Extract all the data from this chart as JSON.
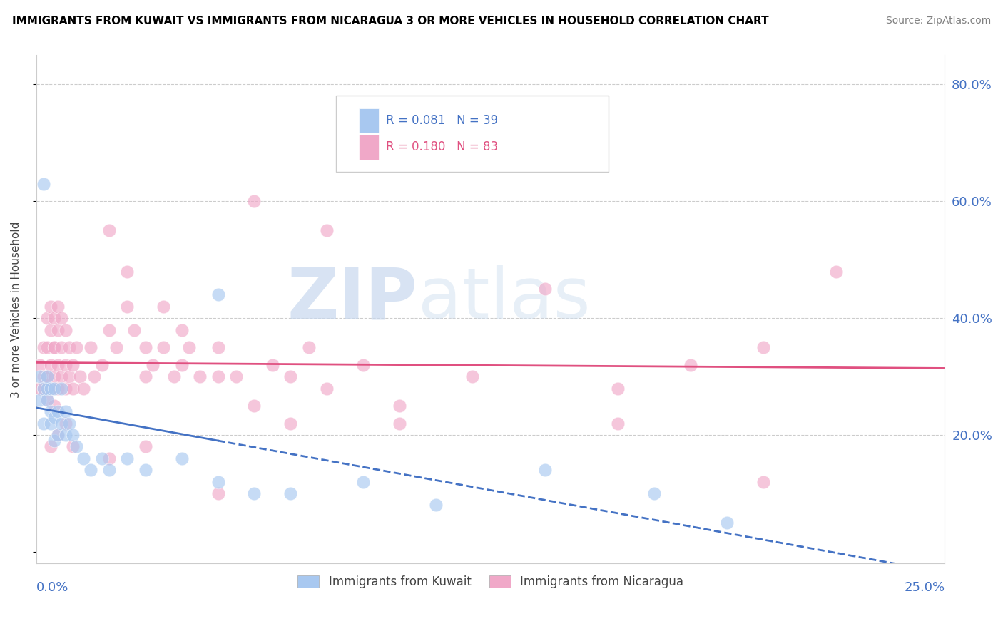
{
  "title": "IMMIGRANTS FROM KUWAIT VS IMMIGRANTS FROM NICARAGUA 3 OR MORE VEHICLES IN HOUSEHOLD CORRELATION CHART",
  "source": "Source: ZipAtlas.com",
  "ylabel": "3 or more Vehicles in Household",
  "xlim": [
    0.0,
    0.25
  ],
  "ylim": [
    -0.02,
    0.85
  ],
  "kuwait_R": 0.081,
  "kuwait_N": 39,
  "nicaragua_R": 0.18,
  "nicaragua_N": 83,
  "color_kuwait": "#a8c8f0",
  "color_nicaragua": "#f0a8c8",
  "color_kuwait_line": "#4472c4",
  "color_nicaragua_line": "#e05080",
  "legend_label_kuwait": "Immigrants from Kuwait",
  "legend_label_nicaragua": "Immigrants from Nicaragua",
  "watermark_zip": "ZIP",
  "watermark_atlas": "atlas",
  "kuwait_x": [
    0.002,
    0.001,
    0.001,
    0.002,
    0.002,
    0.003,
    0.003,
    0.003,
    0.004,
    0.004,
    0.004,
    0.005,
    0.005,
    0.005,
    0.006,
    0.006,
    0.007,
    0.007,
    0.008,
    0.008,
    0.009,
    0.01,
    0.011,
    0.013,
    0.015,
    0.018,
    0.02,
    0.025,
    0.03,
    0.04,
    0.05,
    0.06,
    0.07,
    0.09,
    0.11,
    0.14,
    0.17,
    0.19,
    0.05
  ],
  "kuwait_y": [
    0.63,
    0.3,
    0.26,
    0.28,
    0.22,
    0.26,
    0.28,
    0.3,
    0.24,
    0.28,
    0.22,
    0.28,
    0.23,
    0.19,
    0.24,
    0.2,
    0.28,
    0.22,
    0.24,
    0.2,
    0.22,
    0.2,
    0.18,
    0.16,
    0.14,
    0.16,
    0.14,
    0.16,
    0.14,
    0.16,
    0.12,
    0.1,
    0.1,
    0.12,
    0.08,
    0.14,
    0.1,
    0.05,
    0.44
  ],
  "nicaragua_x": [
    0.001,
    0.001,
    0.002,
    0.002,
    0.002,
    0.003,
    0.003,
    0.003,
    0.003,
    0.004,
    0.004,
    0.004,
    0.004,
    0.005,
    0.005,
    0.005,
    0.005,
    0.005,
    0.006,
    0.006,
    0.006,
    0.006,
    0.007,
    0.007,
    0.007,
    0.008,
    0.008,
    0.008,
    0.009,
    0.009,
    0.01,
    0.01,
    0.011,
    0.012,
    0.013,
    0.015,
    0.016,
    0.018,
    0.02,
    0.022,
    0.025,
    0.027,
    0.03,
    0.032,
    0.035,
    0.038,
    0.04,
    0.042,
    0.045,
    0.05,
    0.055,
    0.06,
    0.065,
    0.07,
    0.075,
    0.08,
    0.02,
    0.025,
    0.03,
    0.035,
    0.04,
    0.05,
    0.06,
    0.07,
    0.08,
    0.09,
    0.1,
    0.12,
    0.14,
    0.16,
    0.18,
    0.2,
    0.22,
    0.16,
    0.2,
    0.1,
    0.05,
    0.03,
    0.02,
    0.01,
    0.008,
    0.006,
    0.004
  ],
  "nicaragua_y": [
    0.28,
    0.32,
    0.28,
    0.3,
    0.35,
    0.26,
    0.3,
    0.35,
    0.4,
    0.28,
    0.32,
    0.38,
    0.42,
    0.25,
    0.3,
    0.35,
    0.4,
    0.35,
    0.28,
    0.32,
    0.38,
    0.42,
    0.3,
    0.35,
    0.4,
    0.28,
    0.32,
    0.38,
    0.3,
    0.35,
    0.28,
    0.32,
    0.35,
    0.3,
    0.28,
    0.35,
    0.3,
    0.32,
    0.38,
    0.35,
    0.42,
    0.38,
    0.3,
    0.32,
    0.35,
    0.3,
    0.32,
    0.35,
    0.3,
    0.35,
    0.3,
    0.6,
    0.32,
    0.3,
    0.35,
    0.28,
    0.55,
    0.48,
    0.35,
    0.42,
    0.38,
    0.3,
    0.25,
    0.22,
    0.55,
    0.32,
    0.25,
    0.3,
    0.45,
    0.28,
    0.32,
    0.35,
    0.48,
    0.22,
    0.12,
    0.22,
    0.1,
    0.18,
    0.16,
    0.18,
    0.22,
    0.2,
    0.18
  ]
}
